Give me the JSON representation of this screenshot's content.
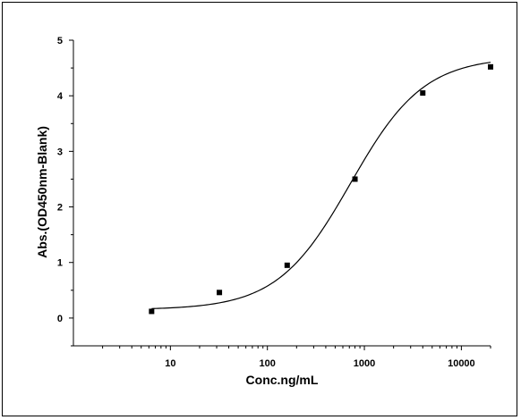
{
  "chart_data": {
    "type": "scatter",
    "title": "",
    "xlabel": "Conc.ng/mL",
    "ylabel": "Abs.(OD450nm-Blank)",
    "x_scale": "log",
    "xlim": [
      1,
      20000
    ],
    "ylim": [
      -0.5,
      5
    ],
    "x_ticks": [
      {
        "value": 10,
        "label": "10"
      },
      {
        "value": 100,
        "label": "100"
      },
      {
        "value": 1000,
        "label": "1000"
      },
      {
        "value": 10000,
        "label": "10000"
      }
    ],
    "y_ticks": [
      {
        "value": 0,
        "label": "0"
      },
      {
        "value": 1,
        "label": "1"
      },
      {
        "value": 2,
        "label": "2"
      },
      {
        "value": 3,
        "label": "3"
      },
      {
        "value": 4,
        "label": "4"
      },
      {
        "value": 5,
        "label": "5"
      }
    ],
    "grid": false,
    "legend": "none",
    "points": {
      "x": [
        6.4,
        32,
        160,
        800,
        4000,
        20000
      ],
      "y": [
        0.12,
        0.46,
        0.95,
        2.5,
        4.05,
        4.52
      ]
    },
    "fit_curve": {
      "model": "4PL",
      "bottom": 0.15,
      "top": 4.7,
      "ec50": 720,
      "hill": 1.15
    },
    "colors": {
      "marker": "#000000",
      "line": "#000000"
    }
  }
}
